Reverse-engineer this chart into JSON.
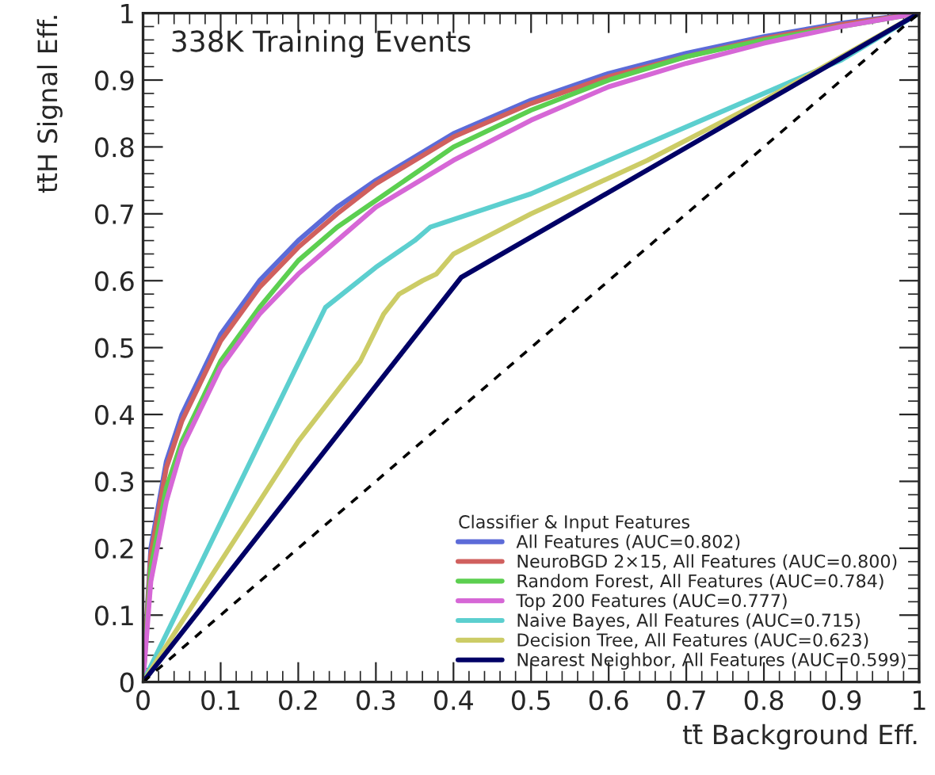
{
  "chart_data": {
    "type": "line",
    "xlabel": "tt̄ Background Eff.",
    "ylabel": "tt̄H Signal Eff.",
    "legend_title": "Classifier & Input Features",
    "annotations": [
      "338K Training Events"
    ],
    "xlim": [
      0,
      1
    ],
    "ylim": [
      0,
      1
    ],
    "xticks": [
      0,
      0.1,
      0.2,
      0.3,
      0.4,
      0.5,
      0.6,
      0.7,
      0.8,
      0.9,
      1
    ],
    "yticks": [
      0,
      0.1,
      0.2,
      0.3,
      0.4,
      0.5,
      0.6,
      0.7,
      0.8,
      0.9,
      1
    ],
    "grid": false,
    "legend": "bottom right",
    "marker": "none",
    "line_style": "solid",
    "series": [
      {
        "name": "All Features (AUC=0.802)",
        "color": "#5c6bd8",
        "x": [
          0,
          0.01,
          0.03,
          0.05,
          0.1,
          0.15,
          0.2,
          0.25,
          0.3,
          0.4,
          0.5,
          0.6,
          0.7,
          0.8,
          0.9,
          1
        ],
        "values": [
          0,
          0.2,
          0.33,
          0.4,
          0.52,
          0.6,
          0.66,
          0.71,
          0.75,
          0.82,
          0.87,
          0.91,
          0.94,
          0.965,
          0.985,
          1
        ]
      },
      {
        "name": "NeuroBGD 2×15, All Features (AUC=0.800)",
        "color": "#d0605e",
        "x": [
          0,
          0.01,
          0.03,
          0.05,
          0.1,
          0.15,
          0.2,
          0.25,
          0.3,
          0.4,
          0.5,
          0.6,
          0.7,
          0.8,
          0.9,
          1
        ],
        "values": [
          0,
          0.19,
          0.32,
          0.39,
          0.51,
          0.59,
          0.65,
          0.7,
          0.745,
          0.815,
          0.865,
          0.905,
          0.935,
          0.962,
          0.983,
          1
        ]
      },
      {
        "name": "Random Forest, All Features (AUC=0.784)",
        "color": "#5ccf50",
        "x": [
          0,
          0.01,
          0.03,
          0.05,
          0.1,
          0.15,
          0.2,
          0.25,
          0.3,
          0.4,
          0.5,
          0.6,
          0.7,
          0.8,
          0.9,
          1
        ],
        "values": [
          0,
          0.17,
          0.29,
          0.36,
          0.48,
          0.56,
          0.63,
          0.68,
          0.72,
          0.8,
          0.855,
          0.9,
          0.935,
          0.96,
          0.98,
          1
        ]
      },
      {
        "name": "Top 200 Features (AUC=0.777)",
        "color": "#d667d6",
        "x": [
          0,
          0.01,
          0.03,
          0.05,
          0.1,
          0.15,
          0.2,
          0.25,
          0.3,
          0.4,
          0.5,
          0.6,
          0.7,
          0.8,
          0.9,
          1
        ],
        "values": [
          0,
          0.15,
          0.27,
          0.35,
          0.47,
          0.55,
          0.61,
          0.66,
          0.71,
          0.78,
          0.84,
          0.89,
          0.925,
          0.955,
          0.98,
          1
        ]
      },
      {
        "name": "Naive Bayes, All Features (AUC=0.715)",
        "color": "#5ccfcf",
        "x": [
          0,
          0.235,
          0.3,
          0.35,
          0.37,
          0.5,
          0.6,
          0.7,
          0.8,
          0.9,
          1
        ],
        "values": [
          0,
          0.56,
          0.62,
          0.66,
          0.68,
          0.73,
          0.78,
          0.83,
          0.88,
          0.93,
          1
        ]
      },
      {
        "name": "Decision Tree, All Features (AUC=0.623)",
        "color": "#cccc66",
        "x": [
          0,
          0.2,
          0.28,
          0.31,
          0.33,
          0.36,
          0.378,
          0.4,
          0.45,
          0.5,
          0.65,
          0.8,
          1
        ],
        "values": [
          0,
          0.36,
          0.48,
          0.55,
          0.58,
          0.6,
          0.61,
          0.64,
          0.67,
          0.7,
          0.78,
          0.87,
          1
        ]
      },
      {
        "name": "Nearest Neighbor, All Features (AUC=0.599)",
        "color": "#000066",
        "x": [
          0,
          0.41,
          1
        ],
        "values": [
          0,
          0.605,
          1
        ]
      },
      {
        "color": "#000000",
        "line_style": "dashed",
        "x": [
          0,
          1
        ],
        "values": [
          0,
          1
        ]
      }
    ]
  }
}
